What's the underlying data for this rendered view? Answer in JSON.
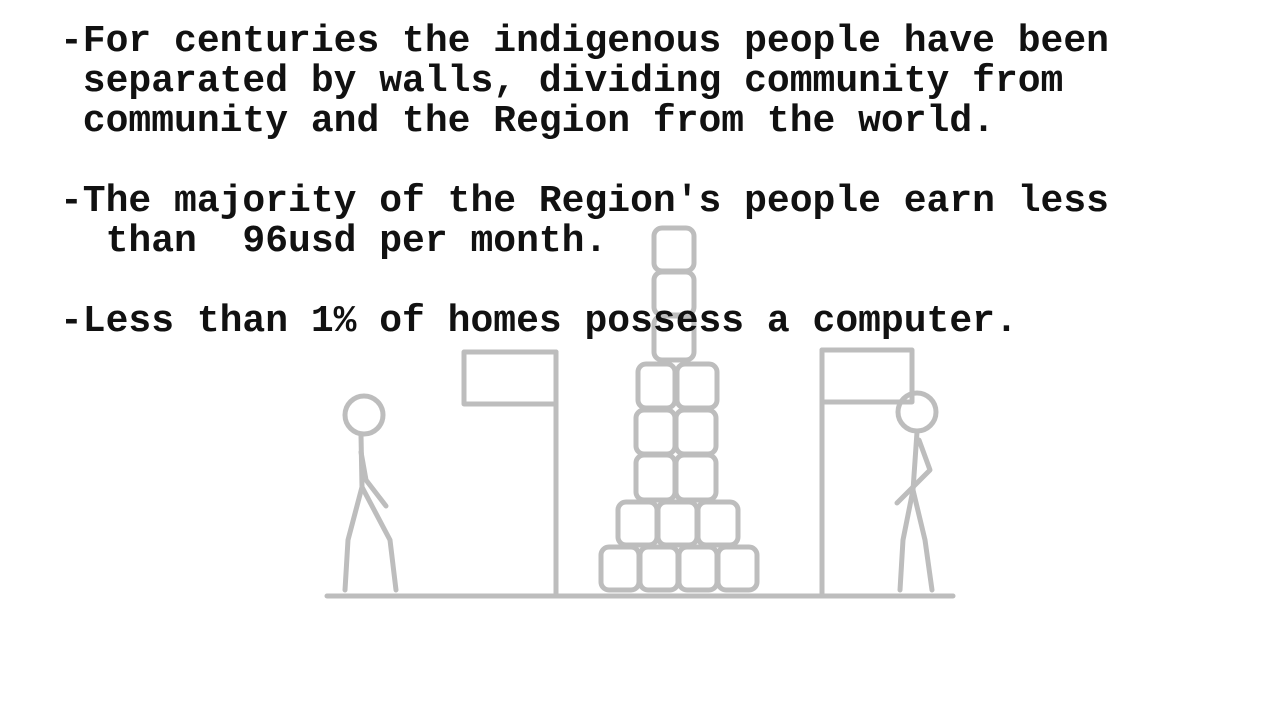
{
  "bullets": [
    {
      "lines": [
        "-For centuries the indigenous people have been",
        " separated by walls, dividing community from",
        " community and the Region from the world."
      ]
    },
    {
      "lines": [
        "-The majority of the Region's people earn less",
        "  than  96usd per month."
      ]
    },
    {
      "lines": [
        "-Less than 1% of homes possess a computer."
      ]
    }
  ]
}
